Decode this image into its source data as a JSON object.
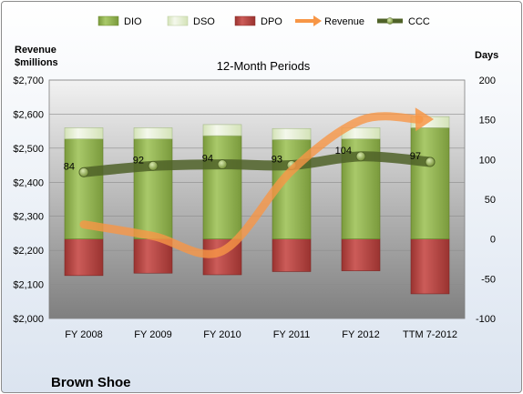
{
  "chart_data": {
    "type": "bar",
    "title": "12-Month Periods",
    "company": "Brown Shoe",
    "left_axis_label": [
      "Revenue",
      "$millions"
    ],
    "right_axis_label": "Days",
    "categories": [
      "FY 2008",
      "FY 2009",
      "FY 2010",
      "FY 2011",
      "FY 2012",
      "TTM 7-2012"
    ],
    "left_ylim": [
      2000,
      2700
    ],
    "left_ticks": [
      2000,
      2100,
      2200,
      2300,
      2400,
      2500,
      2600,
      2700
    ],
    "left_tick_labels": [
      "$2,000",
      "$2,100",
      "$2,200",
      "$2,300",
      "$2,400",
      "$2,500",
      "$2,600",
      "$2,700"
    ],
    "right_ylim": [
      -100,
      200
    ],
    "right_ticks": [
      -100,
      -50,
      0,
      50,
      100,
      150,
      200
    ],
    "right_tick_labels": [
      "-100",
      "-50",
      "0",
      "50",
      "100",
      "150",
      "200"
    ],
    "series": [
      {
        "name": "DIO",
        "axis": "right",
        "values": [
          126,
          126,
          130,
          125,
          126,
          140
        ]
      },
      {
        "name": "DSO",
        "axis": "right",
        "values": [
          14,
          14,
          14,
          14,
          14,
          14
        ]
      },
      {
        "name": "DPO",
        "axis": "right",
        "values": [
          -46,
          -43,
          -45,
          -41,
          -40,
          -69
        ]
      },
      {
        "name": "Revenue",
        "axis": "left",
        "values": [
          2276,
          2242,
          2198,
          2434,
          2582,
          2585
        ]
      },
      {
        "name": "CCC",
        "axis": "right",
        "values": [
          84,
          92,
          94,
          93,
          104,
          97
        ]
      }
    ],
    "ccc_labels": [
      "84",
      "92",
      "94",
      "93",
      "104",
      "97"
    ],
    "colors": {
      "DIO": "#9bbb59",
      "DSO": "#ebf1de",
      "DPO": "#c0504d",
      "Revenue": "#f79646",
      "CCC": "#4f6228"
    },
    "legend_placement": "top",
    "grid": true
  }
}
